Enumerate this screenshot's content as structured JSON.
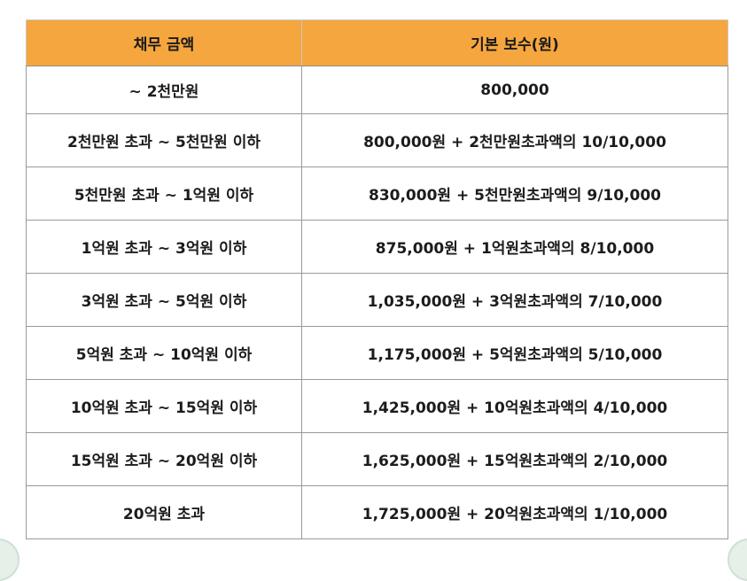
{
  "colors": {
    "header_bg": "#f5a63e",
    "border": "#9a9a9a",
    "text": "#1c1c1c"
  },
  "table": {
    "headers": [
      "채무 금액",
      "기본 보수(원)"
    ],
    "rows": [
      [
        "~ 2천만원",
        "800,000"
      ],
      [
        "2천만원 초과 ~ 5천만원 이하",
        "800,000원 + 2천만원초과액의 10/10,000"
      ],
      [
        "5천만원 초과 ~ 1억원 이하",
        "830,000원 + 5천만원초과액의 9/10,000"
      ],
      [
        "1억원 초과 ~ 3억원 이하",
        "875,000원 + 1억원초과액의 8/10,000"
      ],
      [
        "3억원 초과 ~ 5억원 이하",
        "1,035,000원 + 3억원초과액의 7/10,000"
      ],
      [
        "5억원 초과 ~ 10억원 이하",
        "1,175,000원 + 5억원초과액의 5/10,000"
      ],
      [
        "10억원 초과 ~ 15억원 이하",
        "1,425,000원 + 10억원초과액의 4/10,000"
      ],
      [
        "15억원 초과 ~ 20억원 이하",
        "1,625,000원 + 15억원초과액의 2/10,000"
      ],
      [
        "20억원 초과",
        "1,725,000원 + 20억원초과액의 1/10,000"
      ]
    ]
  }
}
